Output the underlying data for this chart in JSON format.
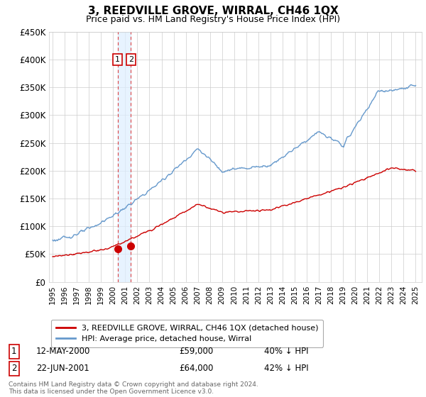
{
  "title": "3, REEDVILLE GROVE, WIRRAL, CH46 1QX",
  "subtitle": "Price paid vs. HM Land Registry's House Price Index (HPI)",
  "legend_entry1": "3, REEDVILLE GROVE, WIRRAL, CH46 1QX (detached house)",
  "legend_entry2": "HPI: Average price, detached house, Wirral",
  "transaction1_label": "1",
  "transaction1_date": "12-MAY-2000",
  "transaction1_price": "£59,000",
  "transaction1_hpi": "40% ↓ HPI",
  "transaction1_year": 2000.37,
  "transaction1_value": 59000,
  "transaction2_label": "2",
  "transaction2_date": "22-JUN-2001",
  "transaction2_price": "£64,000",
  "transaction2_hpi": "42% ↓ HPI",
  "transaction2_year": 2001.47,
  "transaction2_value": 64000,
  "hpi_color": "#6699cc",
  "price_color": "#cc0000",
  "vline_color": "#dd4444",
  "shade_color": "#ddeeff",
  "dot_color": "#cc0000",
  "footer": "Contains HM Land Registry data © Crown copyright and database right 2024.\nThis data is licensed under the Open Government Licence v3.0.",
  "ylim_max": 450000,
  "yticks": [
    0,
    50000,
    100000,
    150000,
    200000,
    250000,
    300000,
    350000,
    400000,
    450000
  ],
  "ytick_labels": [
    "£0",
    "£50K",
    "£100K",
    "£150K",
    "£200K",
    "£250K",
    "£300K",
    "£350K",
    "£400K",
    "£450K"
  ],
  "xmin": 1994.7,
  "xmax": 2025.5
}
